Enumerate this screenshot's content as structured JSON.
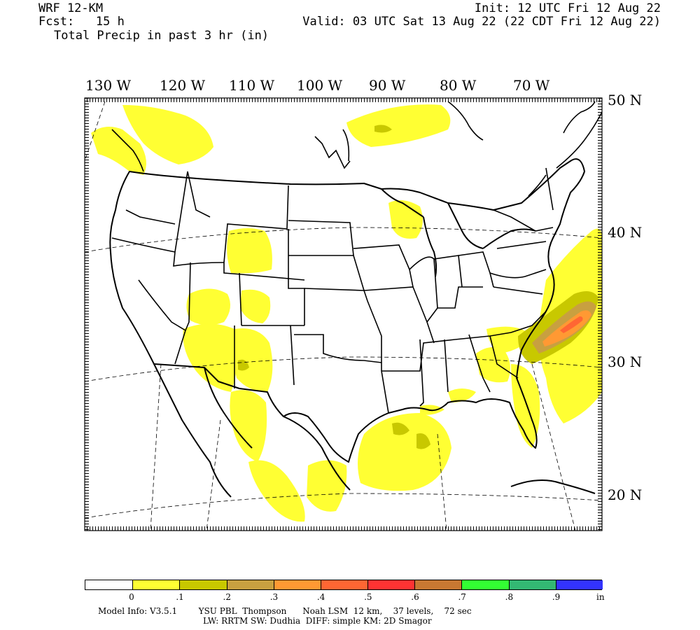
{
  "header": {
    "model": "WRF 12-KM",
    "fcst": "Fcst:   15 h",
    "field": "Total Precip in past 3 hr (in)",
    "init": "Init: 12 UTC Fri 12 Aug 22",
    "valid": "Valid: 03 UTC Sat 13 Aug 22 (22 CDT Fri 12 Aug 22)"
  },
  "longitudes": [
    "130 W",
    "120 W",
    "110 W",
    "100 W",
    "90 W",
    "80 W",
    "70 W"
  ],
  "latitudes": [
    "50 N",
    "40 N",
    "30 N",
    "20 N"
  ],
  "colorbar": {
    "colors": [
      "#ffffff",
      "#ffff33",
      "#c8c800",
      "#c8a040",
      "#ff9933",
      "#ff6633",
      "#ff3333",
      "#c87832",
      "#33ff33",
      "#33b873",
      "#3333ff"
    ],
    "labels": [
      "0",
      ".1",
      ".2",
      ".3",
      ".4",
      ".5",
      ".6",
      ".7",
      ".8",
      ".9",
      "in"
    ]
  },
  "footer": {
    "line1": "Model Info: V3.5.1        YSU PBL  Thompson      Noah LSM  12 km,    37 levels,    72 sec",
    "line2": "LW: RRTM SW: Dudhia  DIFF: simple KM: 2D Smagor"
  },
  "colors": {
    "light": "#ffff33",
    "moderate": "#c8c800",
    "heavy": "#ff9933",
    "mid": "#c8a040",
    "max": "#ff6633"
  }
}
